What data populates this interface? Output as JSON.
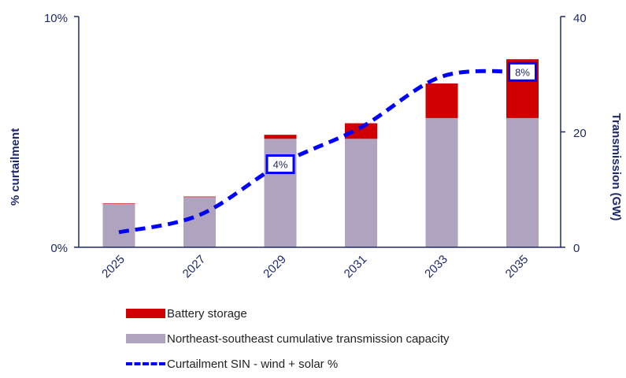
{
  "chart_data": {
    "type": "bar",
    "categories": [
      "2025",
      "2027",
      "2029",
      "2031",
      "2033",
      "2035"
    ],
    "series": [
      {
        "name": "Northeast-southeast cumulative transmission capacity",
        "kind": "bar",
        "axis": "right",
        "color": "#b0a3bf",
        "values": [
          7.5,
          8.7,
          18.8,
          18.8,
          22.4,
          22.4
        ]
      },
      {
        "name": "Battery storage",
        "kind": "bar",
        "axis": "right",
        "color": "#d00000",
        "values": [
          0.1,
          0.1,
          0.7,
          2.7,
          6.0,
          10.2
        ]
      },
      {
        "name": "Curtailment SIN - wind + solar %",
        "kind": "line",
        "axis": "left",
        "color": "#0000ff",
        "values": [
          0.65,
          1.4,
          3.6,
          5.2,
          7.4,
          7.6
        ]
      }
    ],
    "data_labels": [
      {
        "category": "2029",
        "text": "4%"
      },
      {
        "category": "2035",
        "text": "8%"
      }
    ],
    "ylabel": "% curtailment",
    "ylim": [
      0,
      10
    ],
    "yticks": [
      "0%",
      "10%"
    ],
    "y2label": "Transmission (GW)",
    "y2lim": [
      0,
      40
    ],
    "y2ticks": [
      "0",
      "20",
      "40"
    ],
    "legend": "bottom",
    "axis_color": "#1f2a6b"
  }
}
